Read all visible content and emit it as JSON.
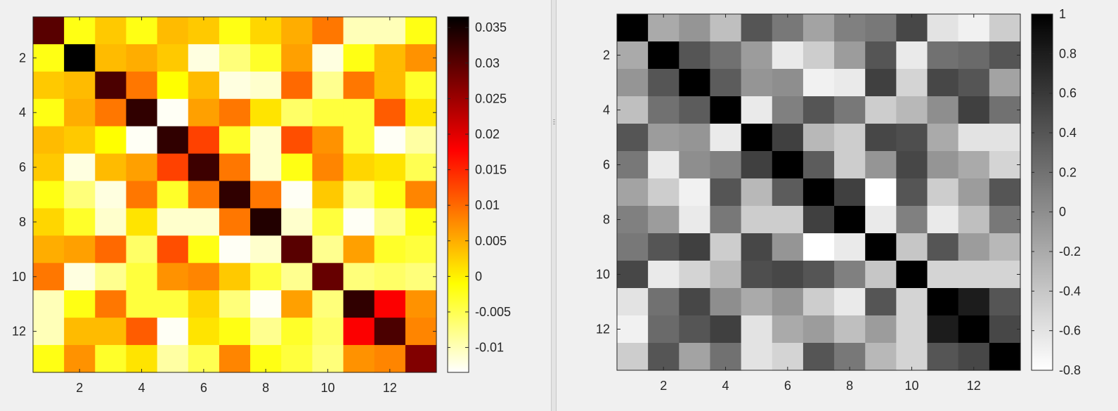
{
  "charts": [
    {
      "type": "heatmap",
      "colormap": "hot",
      "x_ticks": [
        "2",
        "4",
        "6",
        "8",
        "10",
        "12"
      ],
      "y_ticks": [
        "2",
        "4",
        "6",
        "8",
        "10",
        "12"
      ],
      "colorbar_ticks": [
        "0.035",
        "0.03",
        "0.025",
        "0.02",
        "0.015",
        "0.01",
        "0.005",
        "0",
        "-0.005",
        "-0.01"
      ],
      "clim": [
        -0.0135,
        0.0365
      ]
    },
    {
      "type": "heatmap",
      "colormap": "gray",
      "x_ticks": [
        "2",
        "4",
        "6",
        "8",
        "10",
        "12"
      ],
      "y_ticks": [
        "2",
        "4",
        "6",
        "8",
        "10",
        "12"
      ],
      "colorbar_ticks": [
        "1",
        "0.8",
        "0.6",
        "0.4",
        "0.2",
        "0",
        "-0.2",
        "-0.4",
        "-0.6",
        "-0.8"
      ],
      "clim": [
        -0.8,
        1
      ]
    }
  ],
  "chart_data": [
    {
      "type": "heatmap",
      "title": "",
      "xlabel": "",
      "ylabel": "",
      "colormap": "hot",
      "x": [
        1,
        2,
        3,
        4,
        5,
        6,
        7,
        8,
        9,
        10,
        11,
        12,
        13
      ],
      "y": [
        1,
        2,
        3,
        4,
        5,
        6,
        7,
        8,
        9,
        10,
        11,
        12,
        13
      ],
      "clim": [
        -0.0135,
        0.0365
      ],
      "values": [
        [
          0.03,
          -0.002,
          0.003,
          -0.002,
          0.004,
          0.003,
          -0.002,
          0.002,
          0.005,
          0.009,
          -0.01,
          -0.01,
          -0.002
        ],
        [
          -0.002,
          0.0365,
          0.004,
          0.005,
          0.003,
          -0.012,
          -0.007,
          -0.003,
          0.006,
          -0.012,
          -0.002,
          0.004,
          0.007
        ],
        [
          0.003,
          0.004,
          0.031,
          0.009,
          -0.001,
          0.004,
          -0.012,
          -0.011,
          0.01,
          -0.008,
          0.009,
          0.004,
          -0.003
        ],
        [
          -0.002,
          0.005,
          0.009,
          0.033,
          -0.013,
          0.006,
          0.009,
          0.001,
          -0.006,
          -0.004,
          -0.004,
          0.011,
          0.001
        ],
        [
          0.004,
          0.003,
          -0.001,
          -0.013,
          0.033,
          0.013,
          -0.003,
          -0.011,
          0.012,
          0.007,
          -0.004,
          -0.013,
          -0.009
        ],
        [
          0.003,
          -0.012,
          0.004,
          0.006,
          0.013,
          0.032,
          0.009,
          -0.011,
          -0.002,
          0.008,
          0.002,
          0.001,
          -0.005
        ],
        [
          -0.002,
          -0.007,
          -0.012,
          0.009,
          -0.003,
          0.009,
          0.033,
          0.009,
          -0.013,
          0.003,
          -0.007,
          -0.002,
          0.008
        ],
        [
          0.002,
          -0.003,
          -0.011,
          0.001,
          -0.011,
          -0.011,
          0.009,
          0.034,
          -0.011,
          -0.004,
          -0.013,
          -0.008,
          -0.002
        ],
        [
          0.005,
          0.006,
          0.01,
          -0.006,
          0.012,
          -0.002,
          -0.013,
          -0.011,
          0.03,
          -0.008,
          0.006,
          -0.003,
          -0.004
        ],
        [
          0.009,
          -0.012,
          -0.008,
          -0.004,
          0.007,
          0.008,
          0.003,
          -0.004,
          -0.008,
          0.029,
          -0.007,
          -0.006,
          -0.007
        ],
        [
          -0.01,
          -0.002,
          0.009,
          -0.004,
          -0.004,
          0.002,
          -0.007,
          -0.013,
          0.006,
          -0.007,
          0.033,
          0.018,
          0.007
        ],
        [
          -0.01,
          0.004,
          0.004,
          0.011,
          -0.013,
          0.001,
          -0.002,
          -0.008,
          -0.003,
          -0.006,
          0.018,
          0.031,
          0.008
        ],
        [
          -0.002,
          0.007,
          -0.003,
          0.001,
          -0.009,
          -0.005,
          0.008,
          -0.002,
          -0.004,
          -0.007,
          0.007,
          0.008,
          0.027
        ]
      ]
    },
    {
      "type": "heatmap",
      "title": "",
      "xlabel": "",
      "ylabel": "",
      "colormap": "gray",
      "x": [
        1,
        2,
        3,
        4,
        5,
        6,
        7,
        8,
        9,
        10,
        11,
        12,
        13
      ],
      "y": [
        1,
        2,
        3,
        4,
        5,
        6,
        7,
        8,
        9,
        10,
        11,
        12,
        13
      ],
      "clim": [
        -0.8,
        1
      ],
      "values": [
        [
          1.0,
          -0.2,
          -0.05,
          -0.35,
          0.4,
          0.15,
          -0.15,
          0.1,
          0.15,
          0.5,
          -0.6,
          -0.7,
          -0.45
        ],
        [
          -0.2,
          1.0,
          0.4,
          0.2,
          -0.1,
          -0.65,
          -0.45,
          -0.1,
          0.4,
          -0.65,
          0.2,
          0.25,
          0.4
        ],
        [
          -0.05,
          0.4,
          1.0,
          0.35,
          -0.05,
          0.0,
          -0.7,
          -0.65,
          0.55,
          -0.5,
          0.5,
          0.4,
          -0.15
        ],
        [
          -0.35,
          0.2,
          0.35,
          1.0,
          -0.65,
          0.1,
          0.4,
          0.15,
          -0.45,
          -0.3,
          0.0,
          0.55,
          0.2
        ],
        [
          0.4,
          -0.1,
          -0.05,
          -0.65,
          1.0,
          0.55,
          -0.3,
          -0.45,
          0.5,
          0.45,
          -0.2,
          -0.6,
          -0.6
        ],
        [
          0.15,
          -0.65,
          0.0,
          0.1,
          0.55,
          1.0,
          0.35,
          -0.45,
          -0.05,
          0.5,
          -0.05,
          -0.2,
          -0.5
        ],
        [
          -0.15,
          -0.45,
          -0.7,
          0.4,
          -0.3,
          0.35,
          1.0,
          0.55,
          -0.8,
          0.4,
          -0.45,
          -0.1,
          0.4
        ],
        [
          0.1,
          -0.1,
          -0.65,
          0.15,
          -0.45,
          -0.45,
          0.55,
          1.0,
          -0.65,
          0.1,
          -0.65,
          -0.35,
          0.15
        ],
        [
          0.15,
          0.4,
          0.55,
          -0.45,
          0.5,
          -0.05,
          -0.8,
          -0.65,
          1.0,
          -0.4,
          0.4,
          -0.1,
          -0.3
        ],
        [
          0.5,
          -0.65,
          -0.5,
          -0.3,
          0.45,
          0.5,
          0.4,
          0.1,
          -0.4,
          1.0,
          -0.5,
          -0.5,
          -0.5
        ],
        [
          -0.6,
          0.2,
          0.5,
          0.0,
          -0.2,
          -0.05,
          -0.45,
          -0.65,
          0.4,
          -0.5,
          1.0,
          0.8,
          0.4
        ],
        [
          -0.7,
          0.25,
          0.4,
          0.55,
          -0.6,
          -0.2,
          -0.1,
          -0.35,
          -0.1,
          -0.5,
          0.8,
          1.0,
          0.5
        ],
        [
          -0.45,
          0.4,
          -0.15,
          0.2,
          -0.6,
          -0.5,
          0.4,
          0.15,
          -0.3,
          -0.5,
          0.4,
          0.5,
          1.0
        ]
      ]
    }
  ]
}
